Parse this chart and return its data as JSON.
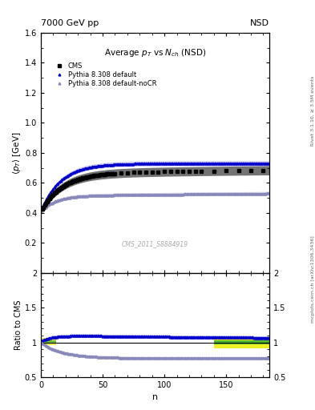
{
  "title_top_left": "7000 GeV pp",
  "title_top_right": "NSD",
  "plot_title": "Average $p_T$ vs $N_{ch}$ (NSD)",
  "ylabel_main": "$\\langle p_T \\rangle$ [GeV]",
  "ylabel_ratio": "Ratio to CMS",
  "xlabel": "n",
  "ylim_main": [
    0.0,
    1.6
  ],
  "ylim_ratio": [
    0.5,
    2.0
  ],
  "xlim": [
    0,
    185
  ],
  "right_label": "Rivet 3.1.10, ≥ 3.5M events",
  "mcplots_label": "mcplots.cern.ch [arXiv:1306.3436]",
  "watermark": "CMS_2011_S8884919",
  "legend_entries": [
    "CMS",
    "Pythia 8.308 default",
    "Pythia 8.308 default-noCR"
  ],
  "cms_color": "#000000",
  "pythia_default_color": "#0000cc",
  "pythia_nocr_color": "#8888bb",
  "band_yellow": "#eeee00",
  "band_green": "#33aa33"
}
